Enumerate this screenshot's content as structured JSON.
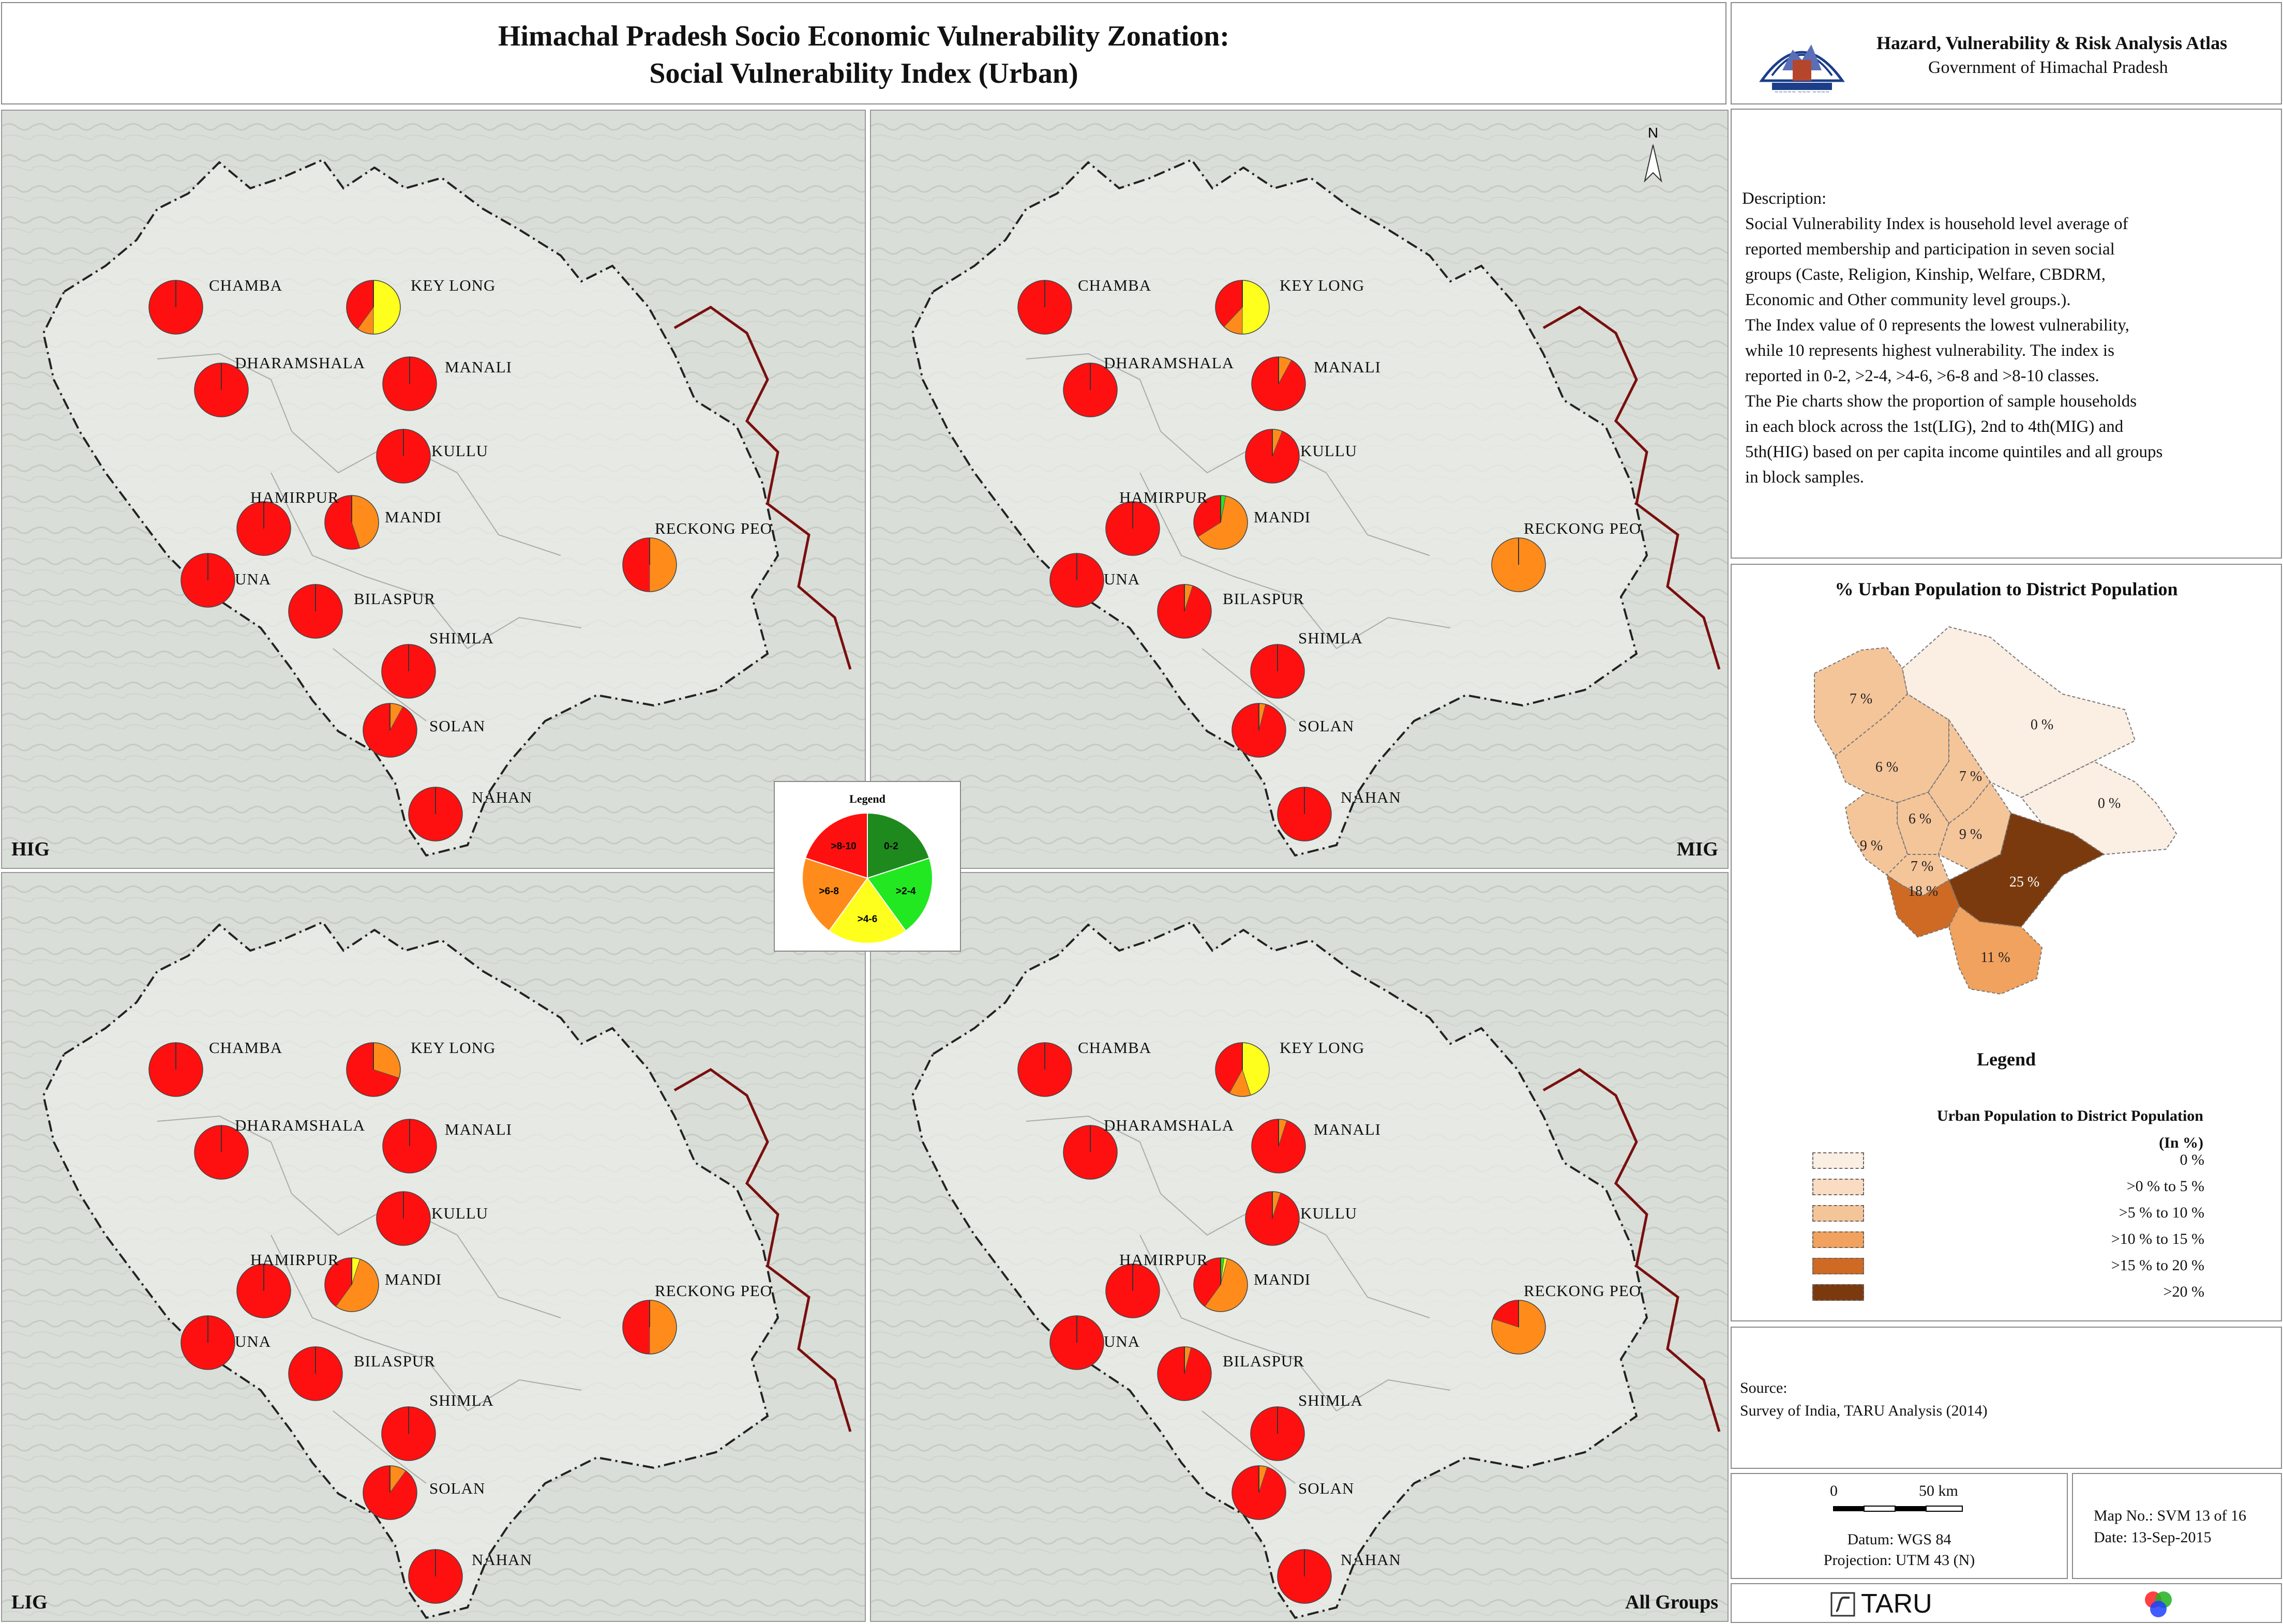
{
  "title": {
    "line1": "Himachal Pradesh Socio Economic Vulnerability Zonation:",
    "line2": "Social Vulnerability Index (Urban)"
  },
  "atlas": {
    "line1": "Hazard, Vulnerability & Risk Analysis Atlas",
    "line2": "Government of Himachal Pradesh"
  },
  "description": {
    "heading": "Description:",
    "lines": [
      "Social Vulnerability Index is household level average of",
      "reported membership and participation in seven social",
      "groups (Caste, Religion, Kinship, Welfare, CBDRM,",
      "Economic and Other community level groups.).",
      "The Index value of 0 represents the lowest vulnerability,",
      "while 10 represents highest vulnerability. The index is",
      "reported in 0-2, >2-4, >4-6, >6-8 and >8-10 classes.",
      "The Pie charts show the proportion of sample households",
      "in each block across the 1st(LIG), 2nd to 4th(MIG) and",
      "5th(HIG) based on per capita income quintiles and all groups",
      "in block samples."
    ]
  },
  "urban_map": {
    "title": "% Urban Population to District Population",
    "legend_heading": "Legend",
    "legend_title_line1": "Urban Population to District Population",
    "legend_title_line2": "(In %)",
    "classes": [
      {
        "label": "0 %",
        "color": "#fbeee2"
      },
      {
        "label": ">0 % to 5 %",
        "color": "#f9dcc2"
      },
      {
        "label": ">5 % to 10 %",
        "color": "#f5c59a"
      },
      {
        "label": ">10 % to 15 %",
        "color": "#f1a25e"
      },
      {
        "label": ">15 % to 20 %",
        "color": "#cf6a24"
      },
      {
        "label": ">20 %",
        "color": "#7b3a0e"
      }
    ],
    "district_labels": [
      "7 %",
      "0 %",
      "6 %",
      "7 %",
      "6 %",
      "9 %",
      "9 %",
      "7 %",
      "0 %",
      "25 %",
      "18 %",
      "11 %"
    ]
  },
  "source": {
    "heading": "Source:",
    "text": "Survey of India, TARU Analysis (2014)"
  },
  "scale": {
    "zero": "0",
    "dist": "50 km",
    "datum": "Datum: WGS 84",
    "projection": "Projection: UTM 43 (N)"
  },
  "map_info": {
    "map_no": "Map No.: SVM 13 of 16",
    "date": "Date: 13-Sep-2015"
  },
  "logo": {
    "text": "TARU"
  },
  "north_label": "N",
  "pie_legend": {
    "title": "Legend",
    "classes": [
      {
        "label": "0-2",
        "color": "#1e8a1e"
      },
      {
        "label": ">2-4",
        "color": "#22e822"
      },
      {
        "label": ">4-6",
        "color": "#ffff1e"
      },
      {
        "label": ">6-8",
        "color": "#ff8c1a"
      },
      {
        "label": ">8-10",
        "color": "#ff1010"
      }
    ]
  },
  "places": [
    "CHAMBA",
    "KEY LONG",
    "DHARAMSHALA",
    "MANALI",
    "KULLU",
    "HAMIRPUR",
    "MANDI",
    "RECKONG PEO",
    "UNA",
    "BILASPUR",
    "SHIMLA",
    "SOLAN",
    "NAHAN"
  ],
  "panels": [
    {
      "label": "HIG",
      "pies": {
        "CHAMBA": [
          0,
          0,
          0,
          0,
          100
        ],
        "KEY LONG": [
          0,
          0,
          50,
          10,
          40
        ],
        "DHARAMSHALA": [
          0,
          0,
          0,
          0,
          100
        ],
        "MANALI": [
          0,
          0,
          0,
          0,
          100
        ],
        "KULLU": [
          0,
          0,
          0,
          0,
          100
        ],
        "HAMIRPUR": [
          0,
          0,
          0,
          0,
          100
        ],
        "MANDI": [
          0,
          0,
          0,
          45,
          55
        ],
        "RECKONG PEO": [
          0,
          0,
          0,
          50,
          50
        ],
        "UNA": [
          0,
          0,
          0,
          0,
          100
        ],
        "BILASPUR": [
          0,
          0,
          0,
          0,
          100
        ],
        "SHIMLA": [
          0,
          0,
          0,
          0,
          100
        ],
        "SOLAN": [
          0,
          0,
          0,
          8,
          92
        ],
        "NAHAN": [
          0,
          0,
          0,
          0,
          100
        ]
      }
    },
    {
      "label": "MIG",
      "pies": {
        "CHAMBA": [
          0,
          0,
          0,
          0,
          100
        ],
        "KEY LONG": [
          0,
          0,
          50,
          12,
          38
        ],
        "DHARAMSHALA": [
          0,
          0,
          0,
          0,
          100
        ],
        "MANALI": [
          0,
          0,
          0,
          8,
          92
        ],
        "KULLU": [
          0,
          0,
          0,
          6,
          94
        ],
        "HAMIRPUR": [
          0,
          0,
          0,
          0,
          100
        ],
        "MANDI": [
          0,
          3,
          0,
          63,
          34
        ],
        "RECKONG PEO": [
          0,
          0,
          0,
          100,
          0
        ],
        "UNA": [
          0,
          0,
          0,
          0,
          100
        ],
        "BILASPUR": [
          0,
          0,
          0,
          5,
          95
        ],
        "SHIMLA": [
          0,
          0,
          0,
          0,
          100
        ],
        "SOLAN": [
          0,
          0,
          0,
          4,
          96
        ],
        "NAHAN": [
          0,
          0,
          0,
          0,
          100
        ]
      }
    },
    {
      "label": "LIG",
      "pies": {
        "CHAMBA": [
          0,
          0,
          0,
          0,
          100
        ],
        "KEY LONG": [
          0,
          0,
          0,
          30,
          70
        ],
        "DHARAMSHALA": [
          0,
          0,
          0,
          0,
          100
        ],
        "MANALI": [
          0,
          0,
          0,
          0,
          100
        ],
        "KULLU": [
          0,
          0,
          0,
          0,
          100
        ],
        "HAMIRPUR": [
          0,
          0,
          0,
          0,
          100
        ],
        "MANDI": [
          0,
          0,
          5,
          55,
          40
        ],
        "RECKONG PEO": [
          0,
          0,
          0,
          50,
          50
        ],
        "UNA": [
          0,
          0,
          0,
          0,
          100
        ],
        "BILASPUR": [
          0,
          0,
          0,
          0,
          100
        ],
        "SHIMLA": [
          0,
          0,
          0,
          0,
          100
        ],
        "SOLAN": [
          0,
          0,
          0,
          10,
          90
        ],
        "NAHAN": [
          0,
          0,
          0,
          0,
          100
        ]
      }
    },
    {
      "label": "All Groups",
      "pies": {
        "CHAMBA": [
          0,
          0,
          0,
          0,
          100
        ],
        "KEY LONG": [
          0,
          0,
          45,
          13,
          42
        ],
        "DHARAMSHALA": [
          0,
          0,
          0,
          0,
          100
        ],
        "MANALI": [
          0,
          0,
          0,
          5,
          95
        ],
        "KULLU": [
          0,
          0,
          0,
          5,
          95
        ],
        "HAMIRPUR": [
          0,
          0,
          0,
          0,
          100
        ],
        "MANDI": [
          0,
          2,
          2,
          56,
          40
        ],
        "RECKONG PEO": [
          0,
          0,
          0,
          80,
          20
        ],
        "UNA": [
          0,
          0,
          0,
          0,
          100
        ],
        "BILASPUR": [
          0,
          0,
          0,
          4,
          96
        ],
        "SHIMLA": [
          0,
          0,
          0,
          0,
          100
        ],
        "SOLAN": [
          0,
          0,
          0,
          5,
          95
        ],
        "NAHAN": [
          0,
          0,
          0,
          0,
          100
        ]
      }
    }
  ]
}
